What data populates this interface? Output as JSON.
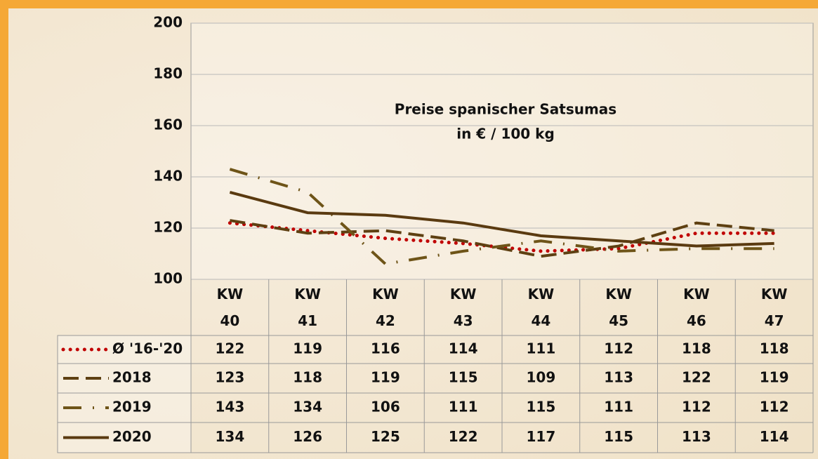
{
  "chart_data": {
    "type": "line",
    "title": "Preise spanischer Satsumas",
    "subtitle": "in € / 100 kg",
    "categories": [
      "KW 40",
      "KW 41",
      "KW 42",
      "KW 43",
      "KW 44",
      "KW 45",
      "KW 46",
      "KW 47"
    ],
    "series": [
      {
        "name": "Ø '16-'20",
        "color": "#c00000",
        "style": "dotted",
        "values": [
          122,
          119,
          116,
          114,
          111,
          112,
          118,
          118
        ]
      },
      {
        "name": "2018",
        "color": "#5e4012",
        "style": "dashed",
        "values": [
          123,
          118,
          119,
          115,
          109,
          113,
          122,
          119
        ]
      },
      {
        "name": "2019",
        "color": "#6e5418",
        "style": "dashdot",
        "values": [
          143,
          134,
          106,
          111,
          115,
          111,
          112,
          112
        ]
      },
      {
        "name": "2020",
        "color": "#5a3a10",
        "style": "solid",
        "values": [
          134,
          126,
          125,
          122,
          117,
          115,
          113,
          114
        ]
      }
    ],
    "ylim": [
      100,
      200
    ],
    "yticks": [
      100,
      120,
      140,
      160,
      180,
      200
    ],
    "grid": true
  }
}
